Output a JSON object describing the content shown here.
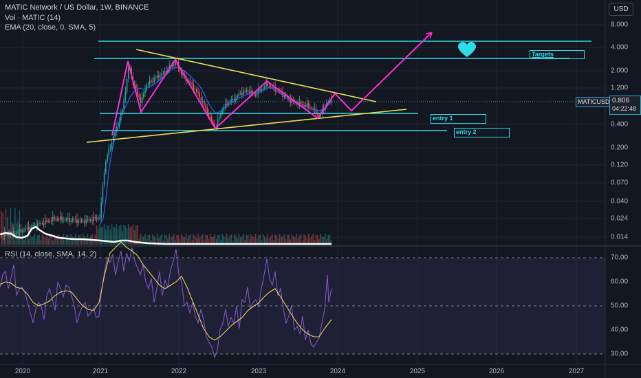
{
  "legend": {
    "title": "MATIC Network / US Dollar, 1W, BINANCE",
    "vol": "Vol · MATIC (14)",
    "ema": "EMA (20, close, 0, SMA, 5)",
    "rsi": "RSI (14, close, SMA, 14, 2)"
  },
  "currency_button": "USD",
  "symbol_tag": "MATICUSD",
  "last_price": "0.806",
  "countdown": "04:22:48",
  "annotations": {
    "targets": "Targets",
    "entry1": "entry 1",
    "entry2": "entry 2"
  },
  "price_axis": [
    "8.000",
    "4.000",
    "2.000",
    "1.200",
    "0.400",
    "0.200",
    "0.120",
    "0.070",
    "0.040",
    "0.024",
    "0.014"
  ],
  "rsi_axis": [
    "70.00",
    "60.00",
    "50.00",
    "40.00",
    "30.00"
  ],
  "time_axis": [
    "2020",
    "2021",
    "2022",
    "2023",
    "2024",
    "2025",
    "2026",
    "2027"
  ],
  "colors": {
    "background": "#131722",
    "cyan": "#2fdde8",
    "magenta": "#ff2bd6",
    "yellow": "#e8e257",
    "ema": "#2962ff",
    "rsi_line": "#7e57c2",
    "rsi_ma": "#e0d65c",
    "candle_up": "#26a69a",
    "candle_down": "#ef5350"
  },
  "icons": [
    "heart-icon",
    "arrow-up-icon"
  ]
}
